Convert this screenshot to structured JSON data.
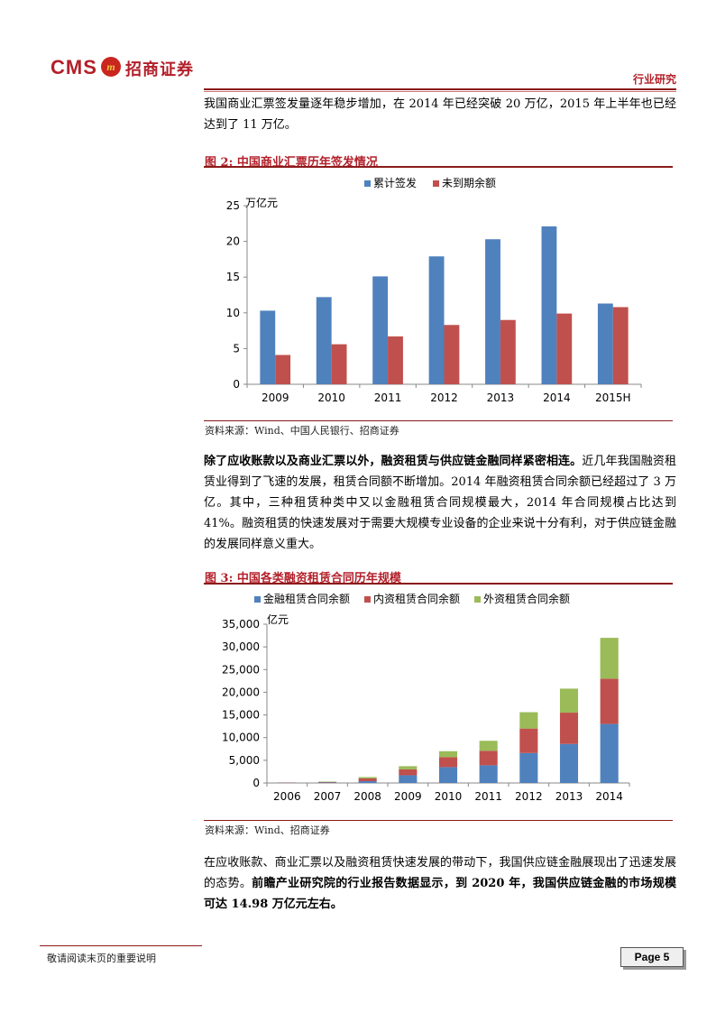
{
  "header": {
    "logo_text": "CMS",
    "logo_badge": "m",
    "company": "招商证券",
    "section": "行业研究"
  },
  "para1": "我国商业汇票签发量逐年稳步增加，在 2014 年已经突破 20 万亿，2015 年上半年也已经达到了 11 万亿。",
  "figure2": {
    "title": "图 2:  中国商业汇票历年签发情况",
    "source": "资料来源：Wind、中国人民银行、招商证券"
  },
  "para2": {
    "bold": "除了应收账款以及商业汇票以外，融资租赁与供应链金融同样紧密相连。",
    "rest": "近几年我国融资租赁业得到了飞速的发展，租赁合同额不断增加。2014 年融资租赁合同余额已经超过了 3 万亿。其中，三种租赁种类中又以金融租赁合同规模最大，2014 年合同规模占比达到 41%。融资租赁的快速发展对于需要大规模专业设备的企业来说十分有利，对于供应链金融的发展同样意义重大。"
  },
  "figure3": {
    "title": "图 3:  中国各类融资租赁合同历年规模",
    "source": "资料来源：Wind、招商证券"
  },
  "para3": {
    "normal": "在应收账款、商业汇票以及融资租赁快速发展的带动下，我国供应链金融展现出了迅速发展的态势。",
    "bold": "前瞻产业研究院的行业报告数据显示，到 2020 年，我国供应链金融的市场规模可达 14.98 万亿元左右。"
  },
  "footer": {
    "note": "敬请阅读末页的重要说明",
    "page": "Page 5"
  },
  "chart_data": [
    {
      "type": "bar",
      "ylabel": "万亿元",
      "categories": [
        "2009",
        "2010",
        "2011",
        "2012",
        "2013",
        "2014",
        "2015H"
      ],
      "ylim": [
        0,
        25
      ],
      "yticks": [
        0,
        5,
        10,
        15,
        20,
        25
      ],
      "legend_position": "top",
      "series": [
        {
          "name": "累计签发",
          "color": "#4f81bd",
          "values": [
            10.3,
            12.2,
            15.1,
            17.9,
            20.3,
            22.1,
            11.3
          ]
        },
        {
          "name": "未到期余额",
          "color": "#c0504d",
          "values": [
            4.1,
            5.6,
            6.7,
            8.3,
            9.0,
            9.9,
            10.8
          ]
        }
      ]
    },
    {
      "type": "bar",
      "stacked": true,
      "ylabel": "亿元",
      "categories": [
        "2006",
        "2007",
        "2008",
        "2009",
        "2010",
        "2011",
        "2012",
        "2013",
        "2014"
      ],
      "ylim": [
        0,
        35000
      ],
      "yticks": [
        0,
        5000,
        10000,
        15000,
        20000,
        25000,
        30000,
        35000
      ],
      "ytick_labels": [
        "0",
        "5,000",
        "10,000",
        "15,000",
        "20,000",
        "25,000",
        "30,000",
        "35,000"
      ],
      "legend_position": "top",
      "series": [
        {
          "name": "金融租赁合同余额",
          "color": "#4f81bd",
          "values": [
            50,
            100,
            400,
            1700,
            3500,
            3900,
            6600,
            8600,
            13000
          ]
        },
        {
          "name": "内资租赁合同余额",
          "color": "#c0504d",
          "values": [
            50,
            100,
            600,
            1300,
            2200,
            3200,
            5400,
            6900,
            10000
          ]
        },
        {
          "name": "外资租赁合同余额",
          "color": "#9bbb59",
          "values": [
            20,
            100,
            300,
            700,
            1300,
            2200,
            3600,
            5300,
            9000
          ]
        }
      ]
    }
  ]
}
